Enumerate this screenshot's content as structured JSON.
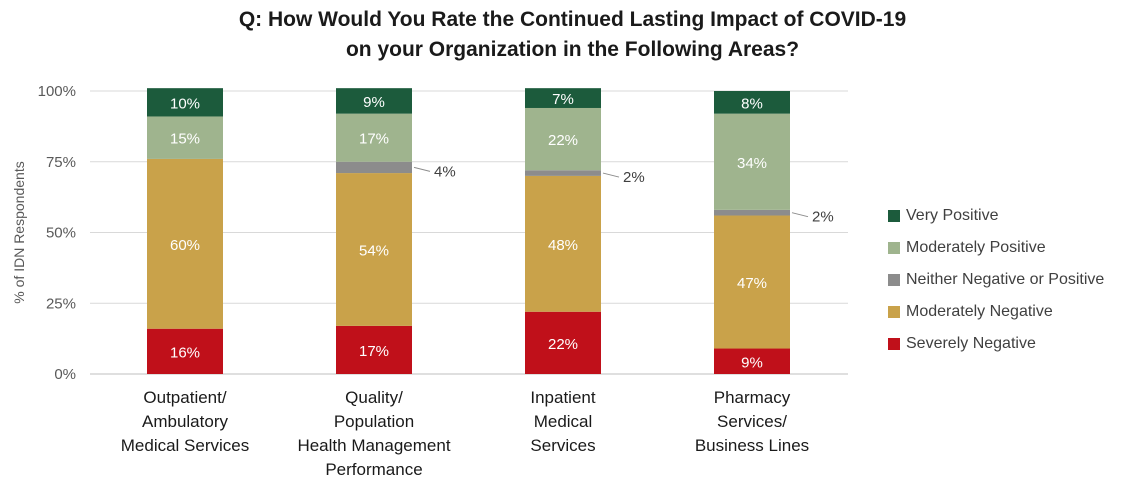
{
  "title_lines": [
    "Q: How Would You Rate the Continued Lasting Impact of COVID-19",
    "on your Organization in the Following Areas?"
  ],
  "chart_data": {
    "type": "bar",
    "stacked": true,
    "ylabel": "% of IDN Respondents",
    "ylim": [
      0,
      100
    ],
    "yticks": [
      "0%",
      "25%",
      "50%",
      "75%",
      "100%"
    ],
    "grid": true,
    "legend_position": "right",
    "categories": [
      [
        "Outpatient/",
        "Ambulatory",
        "Medical Services"
      ],
      [
        "Quality/",
        "Population",
        "Health Management",
        "Performance"
      ],
      [
        "Inpatient",
        "Medical",
        "Services"
      ],
      [
        "Pharmacy",
        "Services/",
        "Business Lines"
      ]
    ],
    "series": [
      {
        "name": "Severely Negative",
        "color": "#c0101a",
        "values": [
          16,
          17,
          22,
          9
        ],
        "labels": [
          "16%",
          "17%",
          "22%",
          "9%"
        ],
        "label_color": "#ffffff"
      },
      {
        "name": "Moderately Negative",
        "color": "#c9a24a",
        "values": [
          60,
          54,
          48,
          47
        ],
        "labels": [
          "60%",
          "54%",
          "48%",
          "47%"
        ],
        "label_color": "#ffffff"
      },
      {
        "name": "Neither Negative or Positive",
        "color": "#8c8c8c",
        "values": [
          0,
          4,
          2,
          2
        ],
        "labels": [
          "",
          "4%",
          "2%",
          "2%"
        ],
        "label_color": "#404040",
        "label_outside": true
      },
      {
        "name": "Moderately Positive",
        "color": "#9fb48e",
        "values": [
          15,
          17,
          22,
          34
        ],
        "labels": [
          "15%",
          "17%",
          "22%",
          "34%"
        ],
        "label_color": "#ffffff"
      },
      {
        "name": "Very Positive",
        "color": "#1c5b3c",
        "values": [
          10,
          9,
          7,
          8
        ],
        "labels": [
          "10%",
          "9%",
          "7%",
          "8%"
        ],
        "label_color": "#ffffff"
      }
    ],
    "legend_order": [
      "Very Positive",
      "Moderately Positive",
      "Neither Negative or Positive",
      "Moderately Negative",
      "Severely Negative"
    ]
  }
}
